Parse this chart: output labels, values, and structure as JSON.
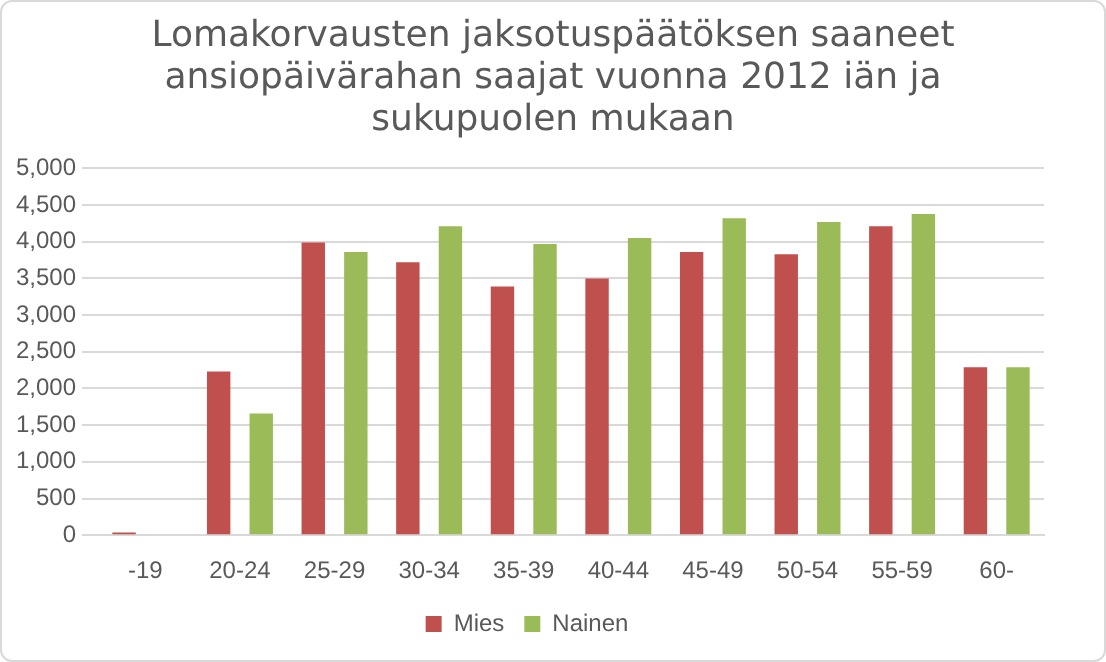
{
  "chart_data": {
    "type": "bar",
    "title": "Lomakorvausten jaksotuspäätöksen saaneet ansiopäivärahan saajat vuonna 2012 iän ja sukupuolen mukaan",
    "categories": [
      "-19",
      "20-24",
      "25-29",
      "30-34",
      "35-39",
      "40-44",
      "45-49",
      "50-54",
      "55-59",
      "60-"
    ],
    "series": [
      {
        "name": "Mies",
        "color": "#c0504d",
        "values": [
          37,
          2230,
          3990,
          3720,
          3390,
          3500,
          3860,
          3830,
          4210,
          2290
        ]
      },
      {
        "name": "Nainen",
        "color": "#9bbb59",
        "values": [
          0,
          1660,
          3860,
          4210,
          3970,
          4050,
          4320,
          4270,
          4380,
          2290
        ]
      }
    ],
    "ylim": [
      0,
      5000
    ],
    "yticks": [
      {
        "value": 0,
        "label": "0"
      },
      {
        "value": 500,
        "label": "500"
      },
      {
        "value": 1000,
        "label": "1,000"
      },
      {
        "value": 1500,
        "label": "1,500"
      },
      {
        "value": 2000,
        "label": "2,000"
      },
      {
        "value": 2500,
        "label": "2,500"
      },
      {
        "value": 3000,
        "label": "3,000"
      },
      {
        "value": 3500,
        "label": "3,500"
      },
      {
        "value": 4000,
        "label": "4,000"
      },
      {
        "value": 4500,
        "label": "4,500"
      },
      {
        "value": 5000,
        "label": "5,000"
      }
    ],
    "grid": "y",
    "legend": "bottom"
  }
}
